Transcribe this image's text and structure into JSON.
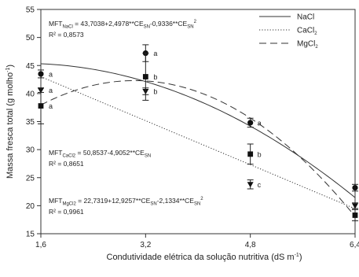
{
  "chart_data": {
    "type": "scatter",
    "xlabel": "Condutividade elétrica da solução nutritiva (dS m",
    "xlabel_sup": "-1",
    "xlabel_end": ")",
    "ylabel": "Massa fresca total (g molho",
    "ylabel_sup": "-1",
    "ylabel_end": ")",
    "xlim": [
      1.6,
      6.4
    ],
    "ylim": [
      15,
      55
    ],
    "xticks": [
      "1,6",
      "3,2",
      "4,8",
      "6,4"
    ],
    "yticks": [
      "15",
      "20",
      "25",
      "30",
      "35",
      "40",
      "45",
      "50",
      "55"
    ],
    "grid": false,
    "legend_position": "top-right",
    "series": [
      {
        "name": "NaCl",
        "marker": "circle",
        "line": "solid",
        "coef": [
          43.7038,
          2.4978,
          -0.9336
        ],
        "x": [
          1.6,
          3.2,
          4.8,
          6.4
        ],
        "y": [
          43.5,
          47.2,
          34.8,
          23.2
        ],
        "err": [
          0.7,
          1.5,
          0.8,
          0.6
        ],
        "labels": [
          "a",
          "a",
          "a",
          "a"
        ]
      },
      {
        "name": "CaCl",
        "name_sub": "2",
        "marker": "triangle-down",
        "line": "dotted",
        "coef": [
          50.8537,
          -4.9052,
          0
        ],
        "x": [
          1.6,
          3.2,
          4.8,
          6.4
        ],
        "y": [
          40.6,
          40.4,
          23.8,
          20.0
        ],
        "err": [
          0.4,
          0.6,
          0.8,
          0.5
        ],
        "labels": [
          "a",
          "b",
          "c",
          "b"
        ]
      },
      {
        "name": "MgCl",
        "name_sub": "2",
        "marker": "square",
        "line": "dashed",
        "coef": [
          22.7319,
          12.9257,
          -2.1334
        ],
        "x": [
          1.6,
          3.2,
          4.8,
          6.4
        ],
        "y": [
          37.8,
          43.0,
          29.2,
          18.3
        ],
        "err": [
          3.2,
          4.2,
          1.8,
          1.0
        ],
        "labels": [
          "a",
          "b",
          "b",
          "b"
        ]
      }
    ],
    "equations": [
      {
        "parts": [
          [
            "t",
            "MFT"
          ],
          [
            "sub",
            "NaCl"
          ],
          [
            "t",
            " = 43,7038+2,4978**CE"
          ],
          [
            "sub",
            "SN"
          ],
          [
            "t",
            "-0,9336**CE"
          ],
          [
            "sub",
            "SN"
          ],
          [
            "sup",
            "2"
          ]
        ],
        "r2": "R² = 0,8573"
      },
      {
        "parts": [
          [
            "t",
            "MFT"
          ],
          [
            "sub",
            "CaCl2"
          ],
          [
            "t",
            " = 50,8537-4,9052**CE"
          ],
          [
            "sub",
            "SN"
          ]
        ],
        "r2": "R² = 0,8651"
      },
      {
        "parts": [
          [
            "t",
            "MFT"
          ],
          [
            "sub",
            "MgCl2"
          ],
          [
            "t",
            " = 22,7319+12,9257**CE"
          ],
          [
            "sub",
            "SN"
          ],
          [
            "t",
            "-2,1334**CE"
          ],
          [
            "sub",
            "SN"
          ],
          [
            "sup",
            "2"
          ]
        ],
        "r2": "R² = 0,9961"
      }
    ]
  }
}
